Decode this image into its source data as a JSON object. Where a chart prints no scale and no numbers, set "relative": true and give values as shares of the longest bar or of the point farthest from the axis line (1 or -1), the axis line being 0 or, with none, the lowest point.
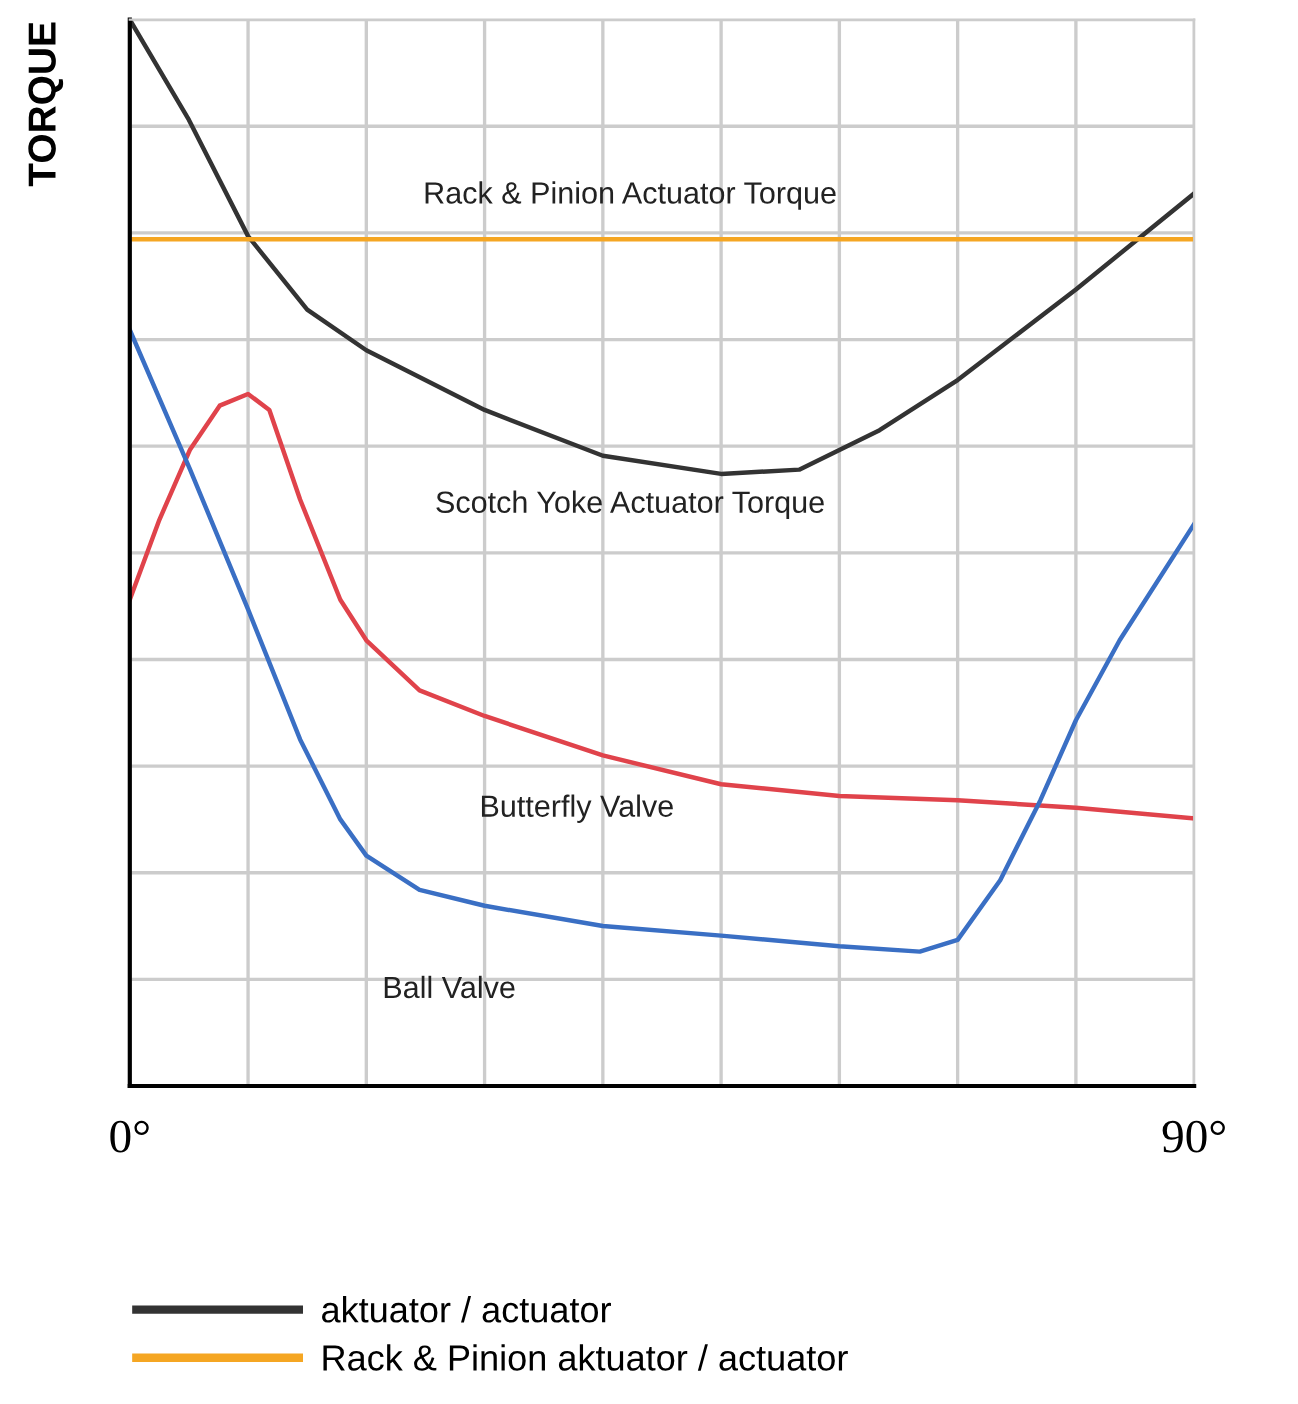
{
  "chart_data": {
    "type": "line",
    "relative": true,
    "ylabel": "TORQUE",
    "xlim": [
      0,
      90
    ],
    "xticks": [
      {
        "value": 0,
        "label": "0°"
      },
      {
        "value": 10,
        "label": null
      },
      {
        "value": 20,
        "label": null
      },
      {
        "value": 30,
        "label": null
      },
      {
        "value": 40,
        "label": null
      },
      {
        "value": 50,
        "label": null
      },
      {
        "value": 60,
        "label": null
      },
      {
        "value": 70,
        "label": null
      },
      {
        "value": 80,
        "label": null
      },
      {
        "value": 90,
        "label": "90°"
      }
    ],
    "series": [
      {
        "name": "aktuator / actuator",
        "color": "#333333",
        "x": [
          0,
          5,
          10,
          15,
          20,
          30,
          40,
          50,
          56.6,
          63.4,
          70,
          80,
          90
        ],
        "values": [
          1.0,
          0.906,
          0.797,
          0.728,
          0.69,
          0.634,
          0.591,
          0.574,
          0.578,
          0.615,
          0.662,
          0.747,
          0.837
        ]
      },
      {
        "name": "Rack & Pinion aktuator / actuator",
        "color": "#f5a623",
        "x": [
          0,
          90
        ],
        "values": [
          0.794,
          0.794
        ]
      },
      {
        "color": "#e0434b",
        "x": [
          0,
          2.5,
          5.1,
          7.6,
          10,
          11.8,
          14.4,
          17.8,
          20,
          24.5,
          30,
          40,
          50,
          60,
          70,
          80,
          90
        ],
        "values": [
          0.456,
          0.531,
          0.597,
          0.638,
          0.649,
          0.634,
          0.55,
          0.456,
          0.418,
          0.371,
          0.347,
          0.31,
          0.283,
          0.272,
          0.268,
          0.261,
          0.251
        ]
      },
      {
        "color": "#3a6fc4",
        "x": [
          0,
          5.1,
          10,
          14.4,
          17.8,
          20,
          24.5,
          30,
          40,
          50,
          60,
          66.8,
          70,
          73.6,
          77,
          80,
          83.7,
          90
        ],
        "values": [
          0.709,
          0.578,
          0.447,
          0.325,
          0.25,
          0.216,
          0.184,
          0.169,
          0.15,
          0.141,
          0.131,
          0.126,
          0.137,
          0.193,
          0.268,
          0.343,
          0.418,
          0.527
        ]
      }
    ],
    "annotations": [
      "Rack & Pinion Actuator Torque",
      "Scotch Yoke Actuator Torque",
      "Butterfly Valve",
      "Ball Valve"
    ],
    "grid": true,
    "legend": "bottom"
  }
}
